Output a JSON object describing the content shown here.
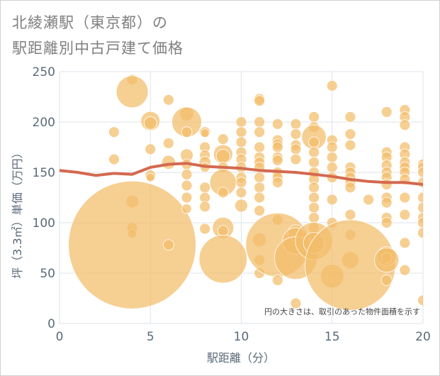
{
  "header": {
    "title_line1": "北綾瀬駅（東京都）の",
    "title_line2": "駅距離別中古戸建て価格"
  },
  "chart_data": {
    "type": "scatter",
    "title": "北綾瀬駅（東京都）の 駅距離別中古戸建て価格",
    "xlabel": "駅距離（分）",
    "ylabel": "坪（3.3㎡）単価（万円）",
    "xlim": [
      0,
      20
    ],
    "ylim": [
      0,
      250
    ],
    "x_ticks": [
      0,
      5,
      10,
      15,
      20
    ],
    "y_ticks": [
      0,
      50,
      100,
      150,
      200,
      250
    ],
    "grid": true,
    "annotation": "円の大きさは、取引のあった物件面積を示す",
    "bubble_color": "#f2bc6a",
    "trend_color": "#d4694f",
    "points": [
      {
        "x": 3,
        "y": 190,
        "s": 1
      },
      {
        "x": 3,
        "y": 163,
        "s": 1
      },
      {
        "x": 4,
        "y": 242,
        "s": 1
      },
      {
        "x": 4,
        "y": 230,
        "s": 3
      },
      {
        "x": 4,
        "y": 121,
        "s": 1.2
      },
      {
        "x": 4,
        "y": 95,
        "s": 1
      },
      {
        "x": 4,
        "y": 89,
        "s": 0.8
      },
      {
        "x": 4,
        "y": 78,
        "s": 12
      },
      {
        "x": 5,
        "y": 201,
        "s": 1.8
      },
      {
        "x": 5,
        "y": 199,
        "s": 1.2
      },
      {
        "x": 5,
        "y": 173,
        "s": 1
      },
      {
        "x": 5,
        "y": 147,
        "s": 1
      },
      {
        "x": 5,
        "y": 145,
        "s": 0.8
      },
      {
        "x": 6,
        "y": 222,
        "s": 1
      },
      {
        "x": 6,
        "y": 179,
        "s": 1
      },
      {
        "x": 6,
        "y": 160,
        "s": 1.3
      },
      {
        "x": 6,
        "y": 78,
        "s": 1
      },
      {
        "x": 7,
        "y": 208,
        "s": 1.3
      },
      {
        "x": 7,
        "y": 200,
        "s": 2.8
      },
      {
        "x": 7,
        "y": 190,
        "s": 1
      },
      {
        "x": 7,
        "y": 167,
        "s": 1.2
      },
      {
        "x": 7,
        "y": 158,
        "s": 1
      },
      {
        "x": 7,
        "y": 148,
        "s": 1
      },
      {
        "x": 7,
        "y": 137,
        "s": 1
      },
      {
        "x": 7,
        "y": 125,
        "s": 1
      },
      {
        "x": 7,
        "y": 114,
        "s": 0.9
      },
      {
        "x": 8,
        "y": 190,
        "s": 1
      },
      {
        "x": 8,
        "y": 189,
        "s": 0.8
      },
      {
        "x": 8,
        "y": 175,
        "s": 1
      },
      {
        "x": 8,
        "y": 167,
        "s": 1
      },
      {
        "x": 8,
        "y": 160,
        "s": 1.1
      },
      {
        "x": 8,
        "y": 155,
        "s": 0.9
      },
      {
        "x": 8,
        "y": 135,
        "s": 1
      },
      {
        "x": 8,
        "y": 125,
        "s": 1
      },
      {
        "x": 8,
        "y": 116,
        "s": 1
      },
      {
        "x": 8,
        "y": 94,
        "s": 1
      },
      {
        "x": 9,
        "y": 183,
        "s": 1
      },
      {
        "x": 9,
        "y": 168,
        "s": 1.8
      },
      {
        "x": 9,
        "y": 166,
        "s": 1.3
      },
      {
        "x": 9,
        "y": 155,
        "s": 1
      },
      {
        "x": 9,
        "y": 140,
        "s": 2.5
      },
      {
        "x": 9,
        "y": 130,
        "s": 1
      },
      {
        "x": 9,
        "y": 95,
        "s": 2
      },
      {
        "x": 9,
        "y": 92,
        "s": 1
      },
      {
        "x": 9,
        "y": 64,
        "s": 4.5
      },
      {
        "x": 10,
        "y": 200,
        "s": 1
      },
      {
        "x": 10,
        "y": 190,
        "s": 1
      },
      {
        "x": 10,
        "y": 180,
        "s": 1
      },
      {
        "x": 10,
        "y": 170,
        "s": 1
      },
      {
        "x": 10,
        "y": 163,
        "s": 1
      },
      {
        "x": 10,
        "y": 155,
        "s": 1
      },
      {
        "x": 10,
        "y": 145,
        "s": 1
      },
      {
        "x": 10,
        "y": 140,
        "s": 1
      },
      {
        "x": 10,
        "y": 130,
        "s": 1
      },
      {
        "x": 10,
        "y": 117,
        "s": 1.2
      },
      {
        "x": 11,
        "y": 223,
        "s": 1
      },
      {
        "x": 11,
        "y": 221,
        "s": 1
      },
      {
        "x": 11,
        "y": 200,
        "s": 1
      },
      {
        "x": 11,
        "y": 190,
        "s": 1
      },
      {
        "x": 11,
        "y": 175,
        "s": 1
      },
      {
        "x": 11,
        "y": 165,
        "s": 1
      },
      {
        "x": 11,
        "y": 160,
        "s": 1
      },
      {
        "x": 11,
        "y": 155,
        "s": 1
      },
      {
        "x": 11,
        "y": 145,
        "s": 1
      },
      {
        "x": 11,
        "y": 135,
        "s": 1
      },
      {
        "x": 11,
        "y": 125,
        "s": 1
      },
      {
        "x": 11,
        "y": 112,
        "s": 1
      },
      {
        "x": 11,
        "y": 83,
        "s": 1.3
      },
      {
        "x": 11,
        "y": 63,
        "s": 1
      },
      {
        "x": 11,
        "y": 50,
        "s": 1
      },
      {
        "x": 12,
        "y": 198,
        "s": 1
      },
      {
        "x": 12,
        "y": 182,
        "s": 1
      },
      {
        "x": 12,
        "y": 178,
        "s": 1
      },
      {
        "x": 12,
        "y": 175,
        "s": 1
      },
      {
        "x": 12,
        "y": 165,
        "s": 1
      },
      {
        "x": 12,
        "y": 162,
        "s": 1
      },
      {
        "x": 12,
        "y": 150,
        "s": 1
      },
      {
        "x": 12,
        "y": 145,
        "s": 1
      },
      {
        "x": 12,
        "y": 140,
        "s": 1
      },
      {
        "x": 12,
        "y": 103,
        "s": 1
      },
      {
        "x": 12,
        "y": 78,
        "s": 6
      },
      {
        "x": 12,
        "y": 43,
        "s": 1
      },
      {
        "x": 13,
        "y": 198,
        "s": 1
      },
      {
        "x": 13,
        "y": 188,
        "s": 1
      },
      {
        "x": 13,
        "y": 177,
        "s": 1
      },
      {
        "x": 13,
        "y": 173,
        "s": 1
      },
      {
        "x": 13,
        "y": 163,
        "s": 1
      },
      {
        "x": 13,
        "y": 90,
        "s": 1.5
      },
      {
        "x": 13,
        "y": 82,
        "s": 2.5
      },
      {
        "x": 13,
        "y": 65,
        "s": 4
      },
      {
        "x": 13,
        "y": 20,
        "s": 1
      },
      {
        "x": 14,
        "y": 205,
        "s": 1
      },
      {
        "x": 14,
        "y": 195,
        "s": 1
      },
      {
        "x": 14,
        "y": 185,
        "s": 2.3
      },
      {
        "x": 14,
        "y": 180,
        "s": 1
      },
      {
        "x": 14,
        "y": 170,
        "s": 1
      },
      {
        "x": 14,
        "y": 160,
        "s": 1
      },
      {
        "x": 14,
        "y": 150,
        "s": 1
      },
      {
        "x": 14,
        "y": 143,
        "s": 1
      },
      {
        "x": 14,
        "y": 135,
        "s": 1
      },
      {
        "x": 14,
        "y": 125,
        "s": 1
      },
      {
        "x": 14,
        "y": 115,
        "s": 1
      },
      {
        "x": 14,
        "y": 105,
        "s": 1
      },
      {
        "x": 14,
        "y": 95,
        "s": 1
      },
      {
        "x": 14,
        "y": 88,
        "s": 1
      },
      {
        "x": 14,
        "y": 82,
        "s": 3.5
      },
      {
        "x": 14,
        "y": 80,
        "s": 2
      },
      {
        "x": 15,
        "y": 236,
        "s": 1
      },
      {
        "x": 15,
        "y": 182,
        "s": 1
      },
      {
        "x": 15,
        "y": 175,
        "s": 1
      },
      {
        "x": 15,
        "y": 165,
        "s": 1
      },
      {
        "x": 15,
        "y": 155,
        "s": 1
      },
      {
        "x": 15,
        "y": 145,
        "s": 1
      },
      {
        "x": 15,
        "y": 123,
        "s": 1
      },
      {
        "x": 15,
        "y": 100,
        "s": 1
      },
      {
        "x": 15,
        "y": 47,
        "s": 2.2
      },
      {
        "x": 16,
        "y": 205,
        "s": 1
      },
      {
        "x": 16,
        "y": 188,
        "s": 1
      },
      {
        "x": 16,
        "y": 177,
        "s": 1
      },
      {
        "x": 16,
        "y": 155,
        "s": 1
      },
      {
        "x": 16,
        "y": 150,
        "s": 1
      },
      {
        "x": 16,
        "y": 145,
        "s": 1
      },
      {
        "x": 16,
        "y": 140,
        "s": 1
      },
      {
        "x": 16,
        "y": 135,
        "s": 1
      },
      {
        "x": 16,
        "y": 108,
        "s": 1
      },
      {
        "x": 16,
        "y": 88,
        "s": 1
      },
      {
        "x": 16,
        "y": 63,
        "s": 1.6
      },
      {
        "x": 16,
        "y": 58,
        "s": 8.5
      },
      {
        "x": 17,
        "y": 123,
        "s": 1
      },
      {
        "x": 18,
        "y": 210,
        "s": 1
      },
      {
        "x": 18,
        "y": 170,
        "s": 1
      },
      {
        "x": 18,
        "y": 165,
        "s": 1
      },
      {
        "x": 18,
        "y": 157,
        "s": 1
      },
      {
        "x": 18,
        "y": 150,
        "s": 1
      },
      {
        "x": 18,
        "y": 145,
        "s": 1
      },
      {
        "x": 18,
        "y": 138,
        "s": 1
      },
      {
        "x": 18,
        "y": 125,
        "s": 1
      },
      {
        "x": 18,
        "y": 120,
        "s": 1
      },
      {
        "x": 18,
        "y": 105,
        "s": 1
      },
      {
        "x": 18,
        "y": 100,
        "s": 1
      },
      {
        "x": 18,
        "y": 67,
        "s": 1.8
      },
      {
        "x": 18,
        "y": 65,
        "s": 1
      },
      {
        "x": 18,
        "y": 63,
        "s": 2.3
      },
      {
        "x": 18,
        "y": 43,
        "s": 1
      },
      {
        "x": 19,
        "y": 212,
        "s": 1
      },
      {
        "x": 19,
        "y": 205,
        "s": 1
      },
      {
        "x": 19,
        "y": 197,
        "s": 1
      },
      {
        "x": 19,
        "y": 175,
        "s": 1
      },
      {
        "x": 19,
        "y": 168,
        "s": 1
      },
      {
        "x": 19,
        "y": 160,
        "s": 1
      },
      {
        "x": 19,
        "y": 155,
        "s": 1
      },
      {
        "x": 19,
        "y": 150,
        "s": 1
      },
      {
        "x": 19,
        "y": 143,
        "s": 1
      },
      {
        "x": 19,
        "y": 125,
        "s": 1
      },
      {
        "x": 19,
        "y": 108,
        "s": 1
      },
      {
        "x": 19,
        "y": 80,
        "s": 1
      },
      {
        "x": 19,
        "y": 53,
        "s": 1
      },
      {
        "x": 20,
        "y": 158,
        "s": 1
      },
      {
        "x": 20,
        "y": 155,
        "s": 1
      },
      {
        "x": 20,
        "y": 150,
        "s": 1
      },
      {
        "x": 20,
        "y": 140,
        "s": 1
      },
      {
        "x": 20,
        "y": 125,
        "s": 1
      },
      {
        "x": 20,
        "y": 115,
        "s": 1
      },
      {
        "x": 20,
        "y": 105,
        "s": 1
      },
      {
        "x": 20,
        "y": 100,
        "s": 1
      },
      {
        "x": 20,
        "y": 90,
        "s": 1
      },
      {
        "x": 20,
        "y": 23,
        "s": 1
      }
    ],
    "trend": {
      "x": [
        0,
        1,
        2,
        3,
        4,
        5,
        6,
        7,
        8,
        9,
        10,
        11,
        12,
        13,
        14,
        15,
        16,
        17,
        18,
        19,
        20
      ],
      "y": [
        152,
        150,
        147,
        149,
        148,
        155,
        158,
        159,
        156,
        155,
        154,
        152,
        151,
        150,
        148,
        146,
        143,
        141,
        140,
        140,
        138
      ]
    }
  }
}
